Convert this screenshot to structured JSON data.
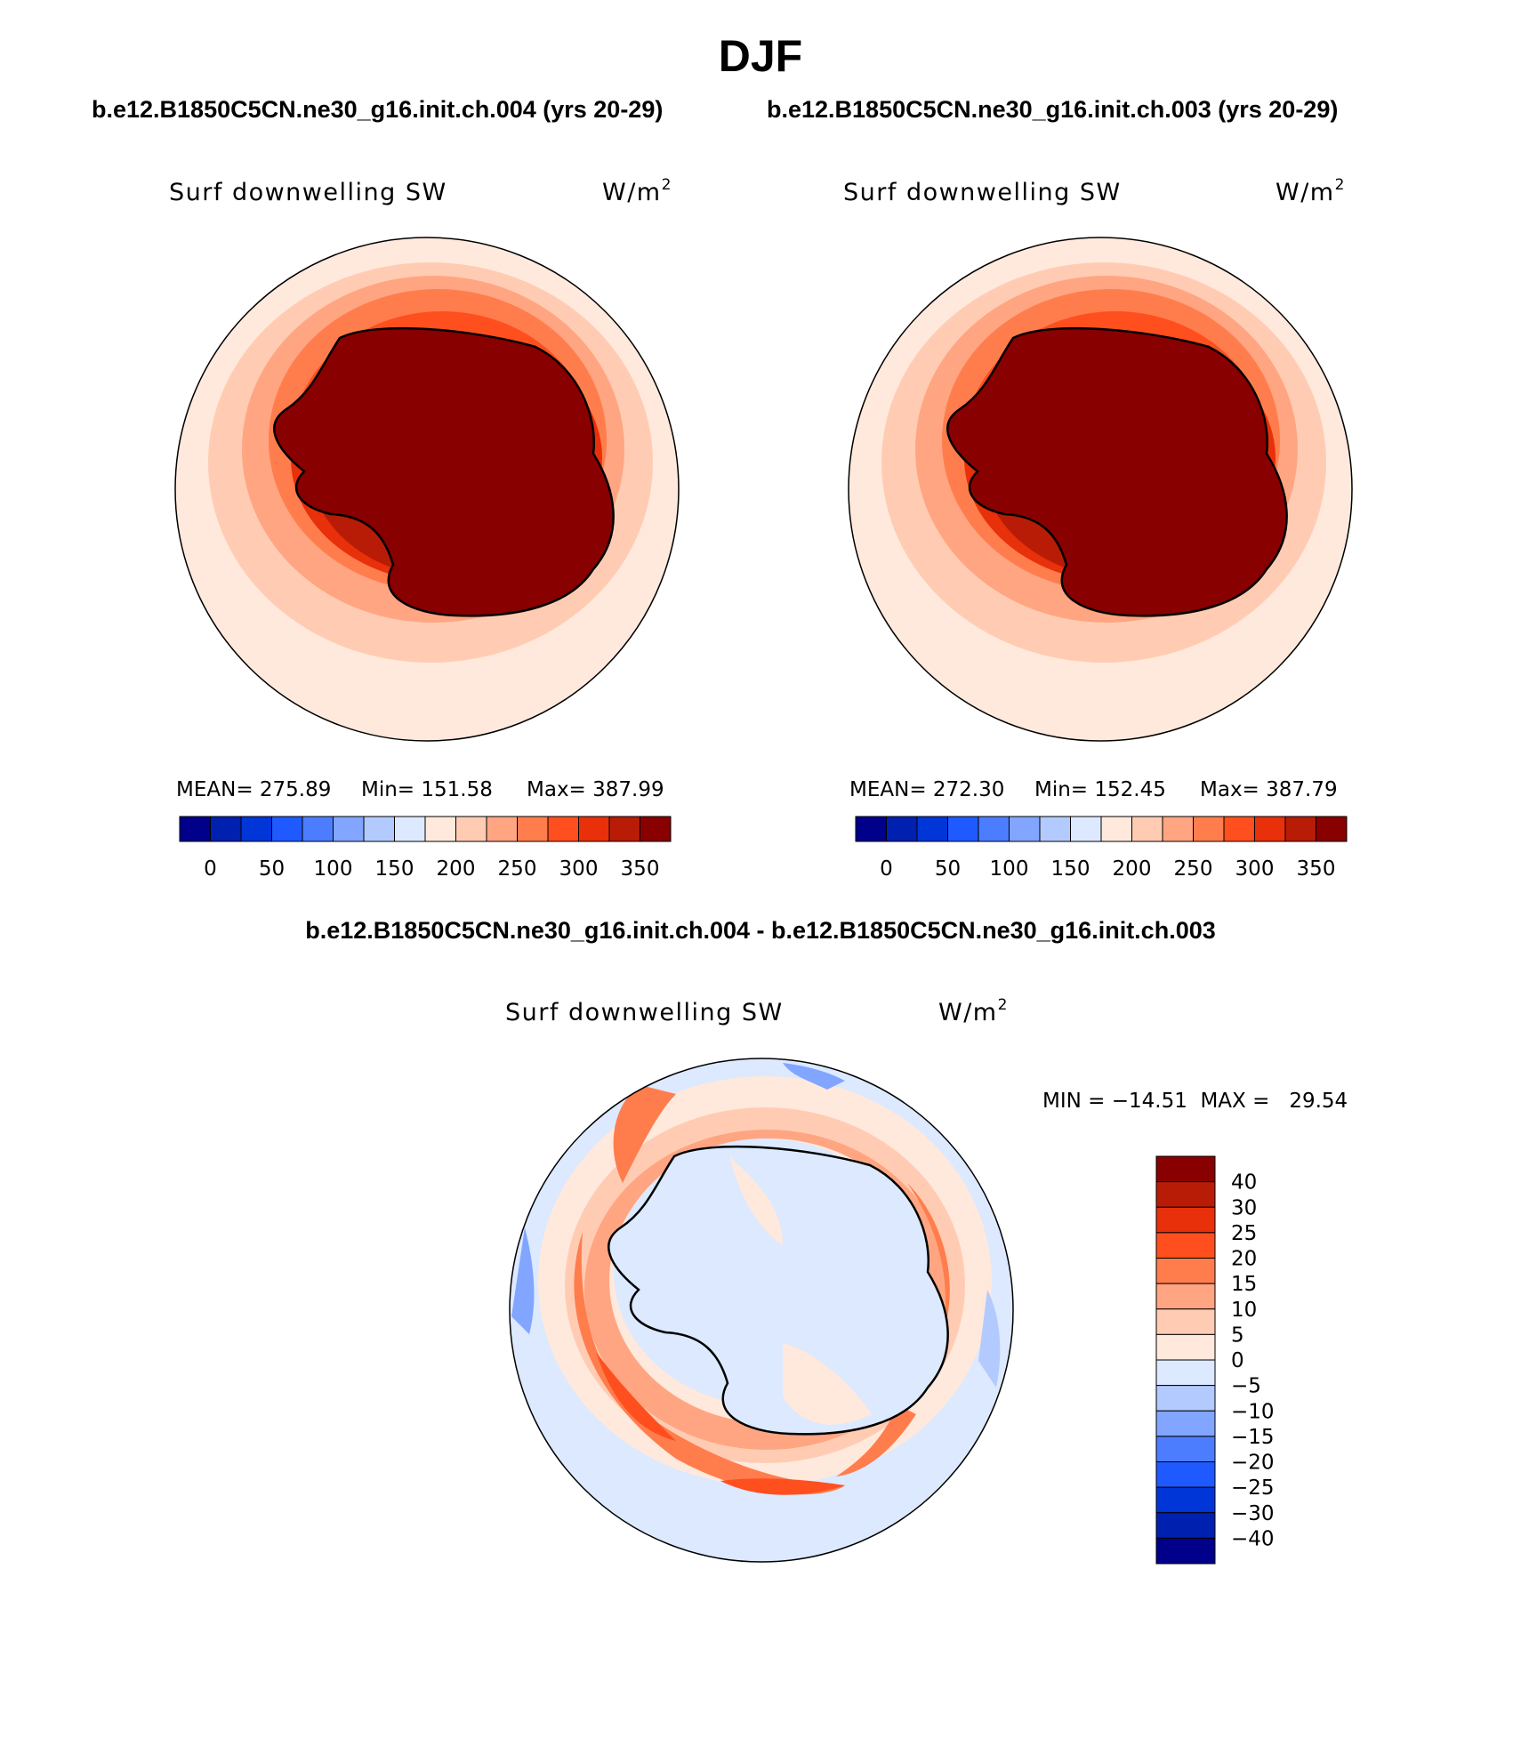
{
  "chart_data": {
    "type": "contour-map",
    "title": "DJF",
    "header_left": "b.e12.B1850C5CN.ne30_g16.init.ch.004 (yrs 20-29)",
    "header_right": "b.e12.B1850C5CN.ne30_g16.init.ch.003 (yrs 20-29)",
    "diff_title": "b.e12.B1850C5CN.ne30_g16.init.ch.004 - b.e12.B1850C5CN.ne30_g16.init.ch.003",
    "panels": [
      {
        "id": "ch004",
        "variable": "Surf downwelling SW",
        "units": "W/m",
        "units_exp": "2",
        "stats": {
          "mean": "MEAN= 275.89",
          "min": "Min= 151.58",
          "max": "Max= 387.99"
        },
        "colorbar": {
          "ticks": [
            "0",
            "50",
            "100",
            "150",
            "200",
            "250",
            "300",
            "350"
          ],
          "colors": [
            "#00008a",
            "#0020b0",
            "#0035d8",
            "#1e5aff",
            "#4d7dff",
            "#82a5ff",
            "#b3caff",
            "#dce9ff",
            "#ffe9dc",
            "#ffccb3",
            "#ffa582",
            "#ff7d4d",
            "#ff4f1e",
            "#e8300b",
            "#b81c07",
            "#880000"
          ]
        },
        "contour_levels": [
          {
            "level": 175,
            "color": "#ffe9dc"
          },
          {
            "level": 200,
            "color": "#ffccb3"
          },
          {
            "level": 225,
            "color": "#ffa582"
          },
          {
            "level": 250,
            "color": "#ff7d4d"
          },
          {
            "level": 275,
            "color": "#ff4f1e"
          },
          {
            "level": 300,
            "color": "#e8300b"
          },
          {
            "level": 325,
            "color": "#b81c07"
          },
          {
            "level": 350,
            "color": "#880000"
          }
        ]
      },
      {
        "id": "ch003",
        "variable": "Surf downwelling SW",
        "units": "W/m",
        "units_exp": "2",
        "stats": {
          "mean": "MEAN= 272.30",
          "min": "Min= 152.45",
          "max": "Max= 387.79"
        },
        "colorbar": {
          "ticks": [
            "0",
            "50",
            "100",
            "150",
            "200",
            "250",
            "300",
            "350"
          ],
          "colors": [
            "#00008a",
            "#0020b0",
            "#0035d8",
            "#1e5aff",
            "#4d7dff",
            "#82a5ff",
            "#b3caff",
            "#dce9ff",
            "#ffe9dc",
            "#ffccb3",
            "#ffa582",
            "#ff7d4d",
            "#ff4f1e",
            "#e8300b",
            "#b81c07",
            "#880000"
          ]
        },
        "contour_levels": [
          {
            "level": 175,
            "color": "#ffe9dc"
          },
          {
            "level": 200,
            "color": "#ffccb3"
          },
          {
            "level": 225,
            "color": "#ffa582"
          },
          {
            "level": 250,
            "color": "#ff7d4d"
          },
          {
            "level": 275,
            "color": "#ff4f1e"
          },
          {
            "level": 300,
            "color": "#e8300b"
          },
          {
            "level": 325,
            "color": "#b81c07"
          },
          {
            "level": 350,
            "color": "#880000"
          }
        ]
      },
      {
        "id": "diff",
        "variable": "Surf downwelling SW",
        "units": "W/m",
        "units_exp": "2",
        "stats_text": "MIN = −14.51  MAX =   29.54",
        "colorbar": {
          "ticks": [
            "40",
            "30",
            "25",
            "20",
            "15",
            "10",
            "5",
            "0",
            "−5",
            "−10",
            "−15",
            "−20",
            "−25",
            "−30",
            "−40"
          ],
          "colors": [
            "#880000",
            "#b81c07",
            "#e8300b",
            "#ff4f1e",
            "#ff7d4d",
            "#ffa582",
            "#ffccb3",
            "#ffe9dc",
            "#dce9ff",
            "#b3caff",
            "#82a5ff",
            "#4d7dff",
            "#1e5aff",
            "#0035d8",
            "#0020b0",
            "#00008a"
          ]
        }
      }
    ]
  }
}
